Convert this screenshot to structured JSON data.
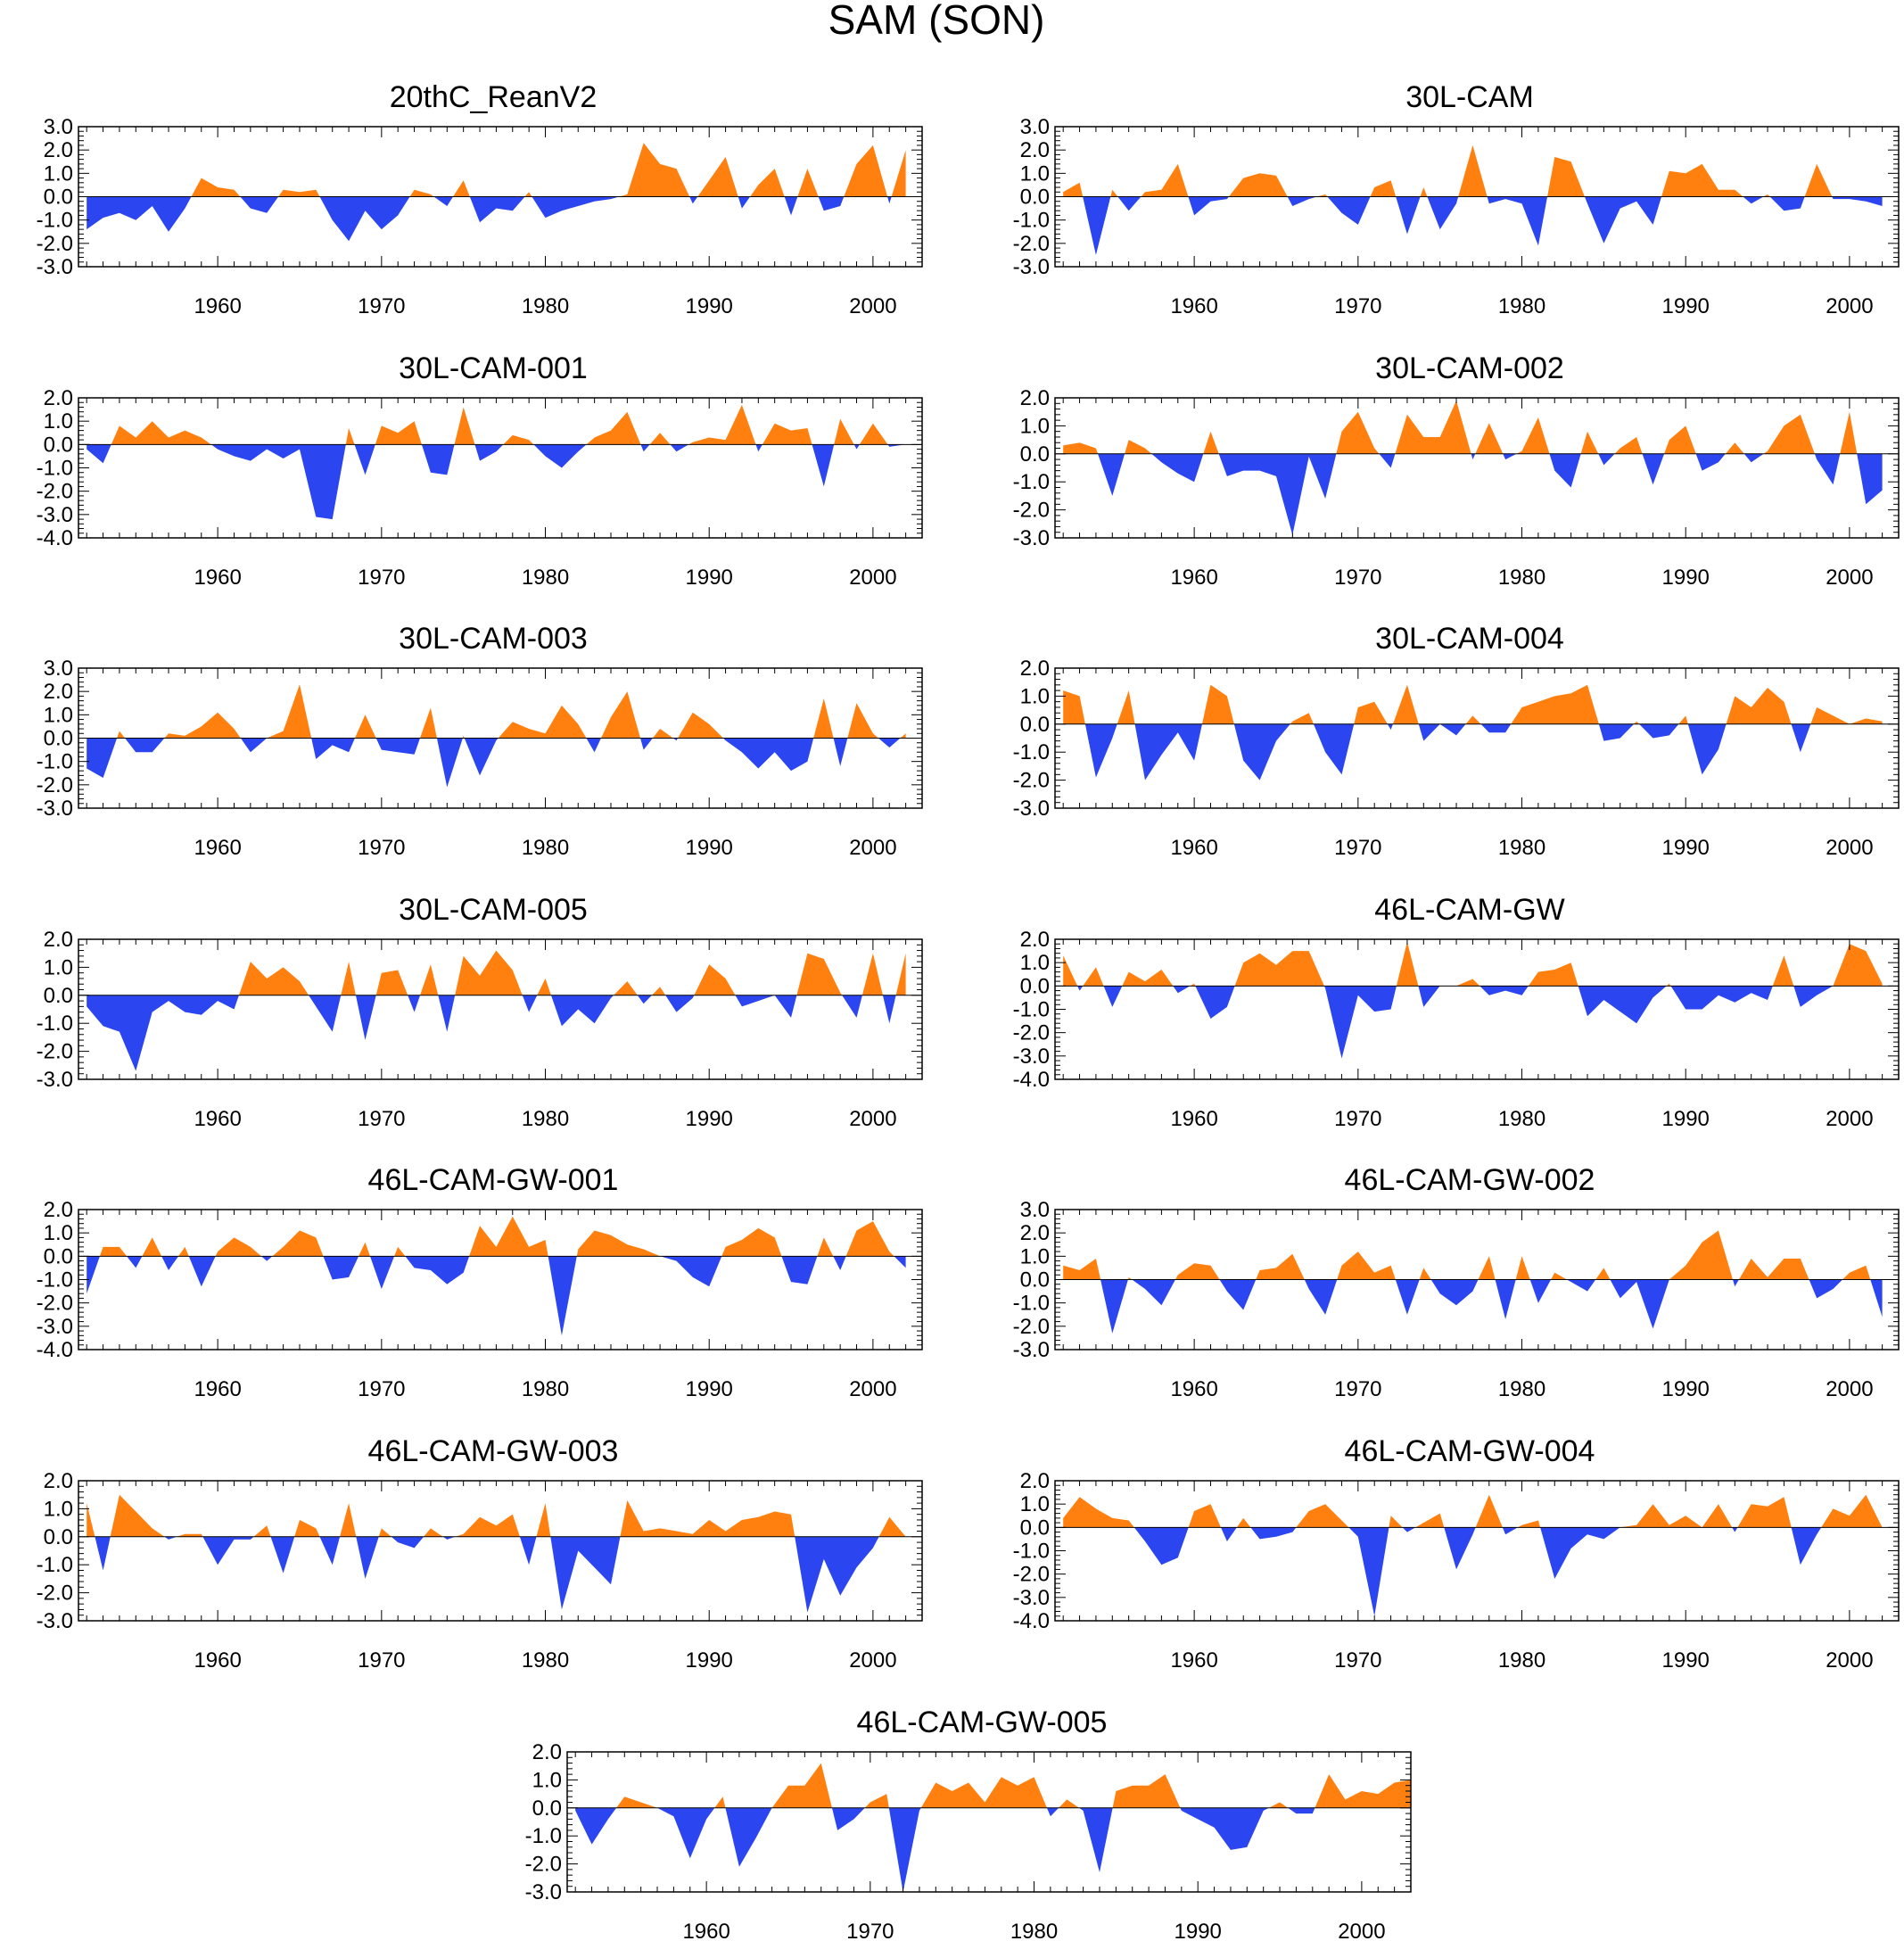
{
  "figure": {
    "title": "SAM (SON)",
    "colors": {
      "positive": "#ff7f0f",
      "negative": "#2b45f0",
      "axis": "#000000"
    },
    "x_range": [
      1951.5,
      2003
    ],
    "x_ticks": [
      1960,
      1970,
      1980,
      1990,
      2000
    ],
    "x_tick_labels": [
      "1960",
      "1970",
      "1980",
      "1990",
      "2000"
    ]
  },
  "chart_data": [
    {
      "type": "area",
      "title": "20thC_ReanV2",
      "xlabel": "",
      "ylabel": "",
      "x_start": 1952,
      "ylim": [
        -3,
        3
      ],
      "yticks": [
        "3.0",
        "2.0",
        "1.0",
        "0.0",
        "-1.0",
        "-2.0",
        "-3.0"
      ],
      "values": [
        -1.4,
        -0.9,
        -0.7,
        -1.0,
        -0.4,
        -1.5,
        -0.5,
        0.8,
        0.4,
        0.3,
        -0.5,
        -0.7,
        0.3,
        0.2,
        0.3,
        -1.0,
        -1.9,
        -0.6,
        -1.4,
        -0.8,
        0.3,
        0.1,
        -0.4,
        0.7,
        -1.1,
        -0.5,
        -0.6,
        0.2,
        -0.9,
        -0.6,
        -0.4,
        -0.2,
        -0.1,
        0.1,
        2.3,
        1.4,
        1.2,
        -0.3,
        0.7,
        1.7,
        -0.5,
        0.5,
        1.2,
        -0.8,
        1.2,
        -0.6,
        -0.4,
        1.4,
        2.2,
        -0.3,
        2.0
      ]
    },
    {
      "type": "area",
      "title": "30L-CAM",
      "xlabel": "",
      "ylabel": "",
      "x_start": 1952,
      "ylim": [
        -3,
        3
      ],
      "yticks": [
        "3.0",
        "2.0",
        "1.0",
        "0.0",
        "-1.0",
        "-2.0",
        "-3.0"
      ],
      "values": [
        0.2,
        0.6,
        -2.5,
        0.3,
        -0.6,
        0.2,
        0.3,
        1.4,
        -0.8,
        -0.2,
        -0.1,
        0.8,
        1.0,
        0.9,
        -0.4,
        -0.1,
        0.1,
        -0.7,
        -1.2,
        0.4,
        0.7,
        -1.6,
        0.4,
        -1.4,
        -0.3,
        2.2,
        -0.3,
        -0.1,
        -0.3,
        -2.1,
        1.7,
        1.5,
        -0.3,
        -2.0,
        -0.5,
        -0.2,
        -1.2,
        1.1,
        1.0,
        1.4,
        0.3,
        0.3,
        -0.3,
        0.1,
        -0.6,
        -0.5,
        1.4,
        -0.1,
        -0.1,
        -0.2,
        -0.4
      ]
    },
    {
      "type": "area",
      "title": "30L-CAM-001",
      "xlabel": "",
      "ylabel": "",
      "x_start": 1952,
      "ylim": [
        -4,
        2
      ],
      "yticks": [
        "2.0",
        "1.0",
        "0.0",
        "-1.0",
        "-2.0",
        "-3.0",
        "-4.0"
      ],
      "values": [
        -0.2,
        -0.8,
        0.8,
        0.3,
        1.0,
        0.3,
        0.6,
        0.3,
        -0.2,
        -0.5,
        -0.7,
        -0.2,
        -0.6,
        -0.2,
        -3.1,
        -3.2,
        0.7,
        -1.3,
        0.8,
        0.5,
        1.0,
        -1.2,
        -1.3,
        1.6,
        -0.7,
        -0.3,
        0.4,
        0.2,
        -0.5,
        -1.0,
        -0.3,
        0.3,
        0.6,
        1.4,
        -0.3,
        0.5,
        -0.3,
        0.1,
        0.3,
        0.2,
        1.7,
        -0.3,
        0.9,
        0.6,
        0.7,
        -1.8,
        1.1,
        -0.2,
        0.9,
        -0.1,
        0.0
      ]
    },
    {
      "type": "area",
      "title": "30L-CAM-002",
      "xlabel": "",
      "ylabel": "",
      "x_start": 1952,
      "ylim": [
        -3,
        2
      ],
      "yticks": [
        "2.0",
        "1.0",
        "0.0",
        "-1.0",
        "-2.0",
        "-3.0"
      ],
      "values": [
        0.3,
        0.4,
        0.2,
        -1.5,
        0.5,
        0.2,
        -0.3,
        -0.7,
        -1.0,
        0.8,
        -0.8,
        -0.6,
        -0.6,
        -0.8,
        -2.9,
        -0.1,
        -1.6,
        0.8,
        1.5,
        0.2,
        -0.5,
        1.4,
        0.6,
        0.6,
        1.9,
        -0.2,
        1.1,
        -0.2,
        0.1,
        1.3,
        -0.6,
        -1.2,
        0.8,
        -0.4,
        0.2,
        0.6,
        -1.1,
        0.5,
        1.0,
        -0.6,
        -0.3,
        0.4,
        -0.3,
        0.1,
        1.0,
        1.4,
        -0.2,
        -1.1,
        1.5,
        -1.8,
        -1.3
      ]
    },
    {
      "type": "area",
      "title": "30L-CAM-003",
      "xlabel": "",
      "ylabel": "",
      "x_start": 1952,
      "ylim": [
        -3,
        3
      ],
      "yticks": [
        "3.0",
        "2.0",
        "1.0",
        "0.0",
        "-1.0",
        "-2.0",
        "-3.0"
      ],
      "values": [
        -1.3,
        -1.7,
        0.3,
        -0.6,
        -0.6,
        0.2,
        0.1,
        0.5,
        1.1,
        0.4,
        -0.6,
        0.0,
        0.3,
        2.3,
        -0.9,
        -0.3,
        -0.6,
        1.0,
        -0.5,
        -0.6,
        -0.7,
        1.3,
        -2.1,
        0.1,
        -1.6,
        -0.1,
        0.7,
        0.4,
        0.2,
        1.4,
        0.6,
        -0.6,
        0.9,
        2.0,
        -0.5,
        0.4,
        -0.1,
        1.1,
        0.6,
        -0.1,
        -0.6,
        -1.3,
        -0.6,
        -1.4,
        -1.0,
        1.7,
        -1.2,
        1.5,
        0.2,
        -0.4,
        0.2
      ]
    },
    {
      "type": "area",
      "title": "30L-CAM-004",
      "xlabel": "",
      "ylabel": "",
      "x_start": 1952,
      "ylim": [
        -3,
        2
      ],
      "yticks": [
        "2.0",
        "1.0",
        "0.0",
        "-1.0",
        "-2.0",
        "-3.0"
      ],
      "values": [
        1.2,
        1.0,
        -1.9,
        -0.5,
        1.2,
        -2.0,
        -1.1,
        -0.3,
        -1.3,
        1.4,
        1.0,
        -1.3,
        -2.0,
        -0.6,
        0.1,
        0.4,
        -1.0,
        -1.8,
        0.6,
        0.8,
        -0.2,
        1.4,
        -0.6,
        0.0,
        -0.4,
        0.3,
        -0.3,
        -0.3,
        0.6,
        0.8,
        1.0,
        1.1,
        1.4,
        -0.6,
        -0.5,
        0.1,
        -0.5,
        -0.4,
        0.3,
        -1.8,
        -0.9,
        1.0,
        0.6,
        1.3,
        0.8,
        -1.0,
        0.6,
        0.3,
        0.0,
        0.2,
        0.1
      ]
    },
    {
      "type": "area",
      "title": "30L-CAM-005",
      "xlabel": "",
      "ylabel": "",
      "x_start": 1952,
      "ylim": [
        -3,
        2
      ],
      "yticks": [
        "2.0",
        "1.0",
        "0.0",
        "-1.0",
        "-2.0",
        "-3.0"
      ],
      "values": [
        -0.4,
        -1.1,
        -1.3,
        -2.7,
        -0.6,
        -0.2,
        -0.6,
        -0.7,
        -0.2,
        -0.5,
        1.2,
        0.6,
        1.0,
        0.5,
        -0.4,
        -1.3,
        1.2,
        -1.6,
        0.8,
        0.9,
        -0.6,
        1.1,
        -1.3,
        1.4,
        0.7,
        1.6,
        0.9,
        -0.6,
        0.6,
        -1.1,
        -0.5,
        -1.0,
        -0.1,
        0.5,
        -0.3,
        0.3,
        -0.6,
        -0.1,
        1.1,
        0.6,
        -0.4,
        -0.2,
        0.0,
        -0.8,
        1.5,
        1.3,
        0.1,
        -0.8,
        1.5,
        -1.0,
        1.5
      ]
    },
    {
      "type": "area",
      "title": "46L-CAM-GW",
      "xlabel": "",
      "ylabel": "",
      "x_start": 1952,
      "ylim": [
        -4,
        2
      ],
      "yticks": [
        "2.0",
        "1.0",
        "0.0",
        "-1.0",
        "-2.0",
        "-3.0",
        "-4.0"
      ],
      "values": [
        1.3,
        -0.2,
        0.8,
        -0.9,
        0.6,
        0.2,
        0.7,
        -0.3,
        0.1,
        -1.4,
        -0.9,
        1.0,
        1.4,
        0.9,
        1.5,
        1.5,
        -0.1,
        -3.1,
        -0.4,
        -1.1,
        -1.0,
        1.9,
        -0.9,
        0.0,
        0.0,
        0.3,
        -0.4,
        -0.2,
        -0.4,
        0.6,
        0.7,
        1.0,
        -1.3,
        -0.6,
        -1.1,
        -1.6,
        -0.5,
        0.1,
        -1.0,
        -1.0,
        -0.4,
        -0.7,
        -0.3,
        -0.6,
        1.3,
        -0.9,
        -0.4,
        0.0,
        1.8,
        1.5,
        0.1
      ]
    },
    {
      "type": "area",
      "title": "46L-CAM-GW-001",
      "xlabel": "",
      "ylabel": "",
      "x_start": 1952,
      "ylim": [
        -4,
        2
      ],
      "yticks": [
        "2.0",
        "1.0",
        "0.0",
        "-1.0",
        "-2.0",
        "-3.0",
        "-4.0"
      ],
      "values": [
        -1.6,
        0.4,
        0.4,
        -0.5,
        0.8,
        -0.6,
        0.4,
        -1.3,
        0.2,
        0.8,
        0.4,
        -0.2,
        0.4,
        1.1,
        0.8,
        -1.0,
        -0.9,
        0.6,
        -1.4,
        0.4,
        -0.5,
        -0.6,
        -1.2,
        -0.7,
        1.3,
        0.4,
        1.7,
        0.4,
        0.7,
        -3.4,
        0.3,
        1.1,
        0.9,
        0.5,
        0.3,
        0.0,
        -0.2,
        -0.9,
        -1.3,
        0.4,
        0.7,
        1.2,
        0.8,
        -1.1,
        -1.2,
        0.8,
        -0.6,
        1.1,
        1.5,
        0.2,
        -0.5
      ]
    },
    {
      "type": "area",
      "title": "46L-CAM-GW-002",
      "xlabel": "",
      "ylabel": "",
      "x_start": 1952,
      "ylim": [
        -3,
        3
      ],
      "yticks": [
        "3.0",
        "2.0",
        "1.0",
        "0.0",
        "-1.0",
        "-2.0",
        "-3.0"
      ],
      "values": [
        0.6,
        0.4,
        0.9,
        -2.3,
        0.1,
        -0.4,
        -1.1,
        0.2,
        0.7,
        0.6,
        -0.5,
        -1.3,
        0.4,
        0.5,
        1.1,
        -0.4,
        -1.5,
        0.6,
        1.2,
        0.3,
        0.6,
        -1.5,
        0.5,
        -0.6,
        -1.1,
        -0.5,
        1.0,
        -1.7,
        1.0,
        -1.0,
        0.3,
        -0.1,
        -0.5,
        0.5,
        -0.8,
        -0.1,
        -2.1,
        0.0,
        0.6,
        1.6,
        2.1,
        -0.3,
        0.9,
        0.1,
        0.9,
        0.9,
        -0.8,
        -0.4,
        0.3,
        0.6,
        -1.6
      ]
    },
    {
      "type": "area",
      "title": "46L-CAM-GW-003",
      "xlabel": "",
      "ylabel": "",
      "x_start": 1952,
      "ylim": [
        -3,
        2
      ],
      "yticks": [
        "2.0",
        "1.0",
        "0.0",
        "-1.0",
        "-2.0",
        "-3.0"
      ],
      "values": [
        1.2,
        -1.2,
        1.5,
        0.9,
        0.3,
        -0.1,
        0.1,
        0.1,
        -1.0,
        -0.1,
        -0.1,
        0.4,
        -1.3,
        0.6,
        0.3,
        -1.0,
        1.2,
        -1.5,
        0.3,
        -0.2,
        -0.4,
        0.3,
        -0.1,
        0.1,
        0.7,
        0.4,
        0.8,
        -1.0,
        1.2,
        -2.6,
        -0.5,
        -1.1,
        -1.7,
        1.3,
        0.2,
        0.3,
        0.2,
        0.1,
        0.6,
        0.2,
        0.6,
        0.7,
        0.9,
        0.8,
        -2.7,
        -0.8,
        -2.1,
        -1.1,
        -0.4,
        0.7,
        0.0
      ]
    },
    {
      "type": "area",
      "title": "46L-CAM-GW-004",
      "xlabel": "",
      "ylabel": "",
      "x_start": 1952,
      "ylim": [
        -4,
        2
      ],
      "yticks": [
        "2.0",
        "1.0",
        "0.0",
        "-1.0",
        "-2.0",
        "-3.0",
        "-4.0"
      ],
      "values": [
        0.4,
        1.3,
        0.8,
        0.4,
        0.3,
        -0.6,
        -1.6,
        -1.3,
        0.7,
        1.0,
        -0.6,
        0.4,
        -0.5,
        -0.4,
        -0.2,
        0.7,
        1.0,
        0.3,
        -0.4,
        -3.8,
        0.5,
        -0.2,
        0.2,
        0.6,
        -1.8,
        -0.3,
        1.4,
        -0.3,
        0.1,
        0.3,
        -2.2,
        -0.9,
        -0.3,
        -0.5,
        0.0,
        0.1,
        1.0,
        0.1,
        0.5,
        0.0,
        1.0,
        -0.2,
        1.0,
        0.9,
        1.3,
        -1.6,
        -0.3,
        0.8,
        0.5,
        1.4,
        0.0
      ]
    },
    {
      "type": "area",
      "title": "46L-CAM-GW-005",
      "xlabel": "",
      "ylabel": "",
      "x_start": 1952,
      "ylim": [
        -3,
        2
      ],
      "yticks": [
        "2.0",
        "1.0",
        "0.0",
        "-1.0",
        "-2.0",
        "-3.0"
      ],
      "values": [
        -0.1,
        -1.3,
        -0.4,
        0.4,
        0.2,
        0.0,
        -0.3,
        -1.8,
        -0.4,
        0.4,
        -2.1,
        -1.1,
        0.0,
        0.8,
        0.8,
        1.6,
        -0.8,
        -0.4,
        0.2,
        0.5,
        -3.0,
        -0.1,
        0.9,
        0.6,
        0.9,
        0.2,
        1.1,
        0.8,
        1.1,
        -0.3,
        0.3,
        -0.1,
        -2.3,
        0.6,
        0.8,
        0.8,
        1.2,
        -0.1,
        -0.4,
        -0.7,
        -1.5,
        -1.4,
        -0.1,
        0.2,
        -0.2,
        -0.2,
        1.2,
        0.3,
        0.6,
        0.5,
        0.9,
        1.0
      ]
    }
  ]
}
